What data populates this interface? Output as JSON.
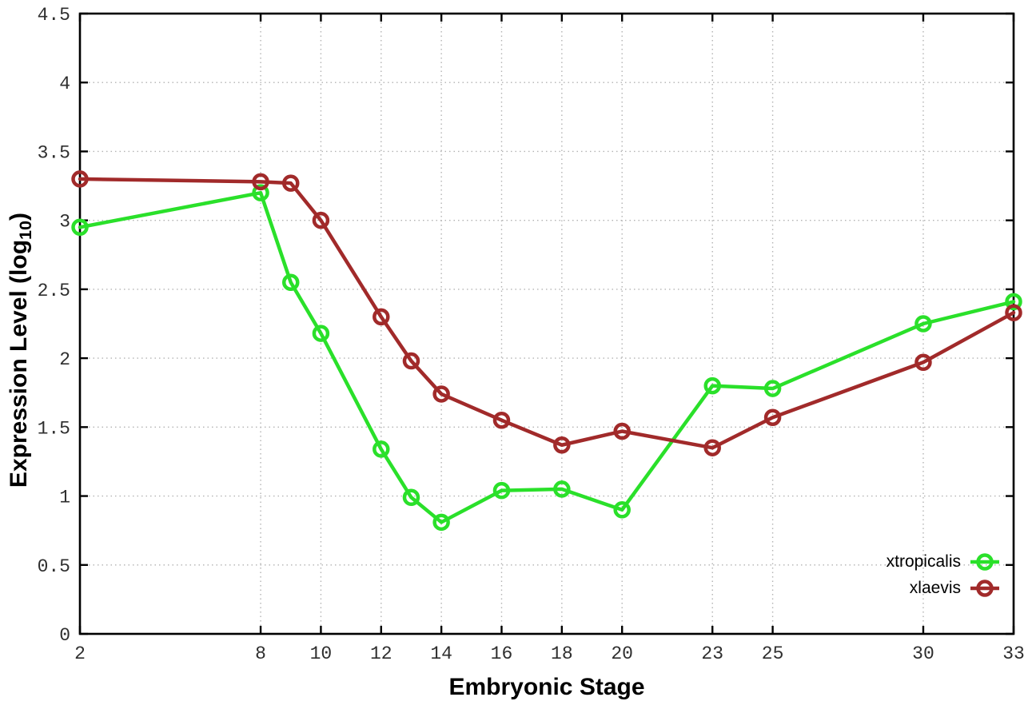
{
  "chart_data": {
    "type": "line",
    "title": "",
    "xlabel": "Embryonic Stage",
    "ylabel": "Expression Level (log10)",
    "ylabel_parts": {
      "prefix": "Expression Level (log",
      "sub": "10",
      "suffix": ")"
    },
    "x": [
      2,
      8,
      9,
      10,
      12,
      13,
      14,
      16,
      18,
      20,
      23,
      25,
      30,
      33
    ],
    "xticks": [
      2,
      8,
      10,
      12,
      14,
      16,
      18,
      20,
      23,
      25,
      30,
      33
    ],
    "yticks": [
      0,
      0.5,
      1,
      1.5,
      2,
      2.5,
      3,
      3.5,
      4,
      4.5
    ],
    "xlim": [
      2,
      33
    ],
    "ylim": [
      0,
      4.5
    ],
    "grid": true,
    "legend_position": "bottom-right",
    "series": [
      {
        "name": "xtropicalis",
        "color": "#2ae02a",
        "marker": "open-circle",
        "values": [
          2.95,
          3.2,
          2.55,
          2.18,
          1.34,
          0.99,
          0.81,
          1.04,
          1.05,
          0.9,
          1.8,
          1.78,
          2.25,
          2.41
        ]
      },
      {
        "name": "xlaevis",
        "color": "#a12a2a",
        "marker": "open-circle",
        "values": [
          3.3,
          3.28,
          3.27,
          3.0,
          2.3,
          1.98,
          1.74,
          1.55,
          1.37,
          1.47,
          1.35,
          1.57,
          1.97,
          2.33
        ]
      }
    ],
    "colors": {
      "grid": "#b3b3b3",
      "axis": "#000000",
      "tick_label": "#2e2e2e",
      "background": "#ffffff"
    }
  }
}
